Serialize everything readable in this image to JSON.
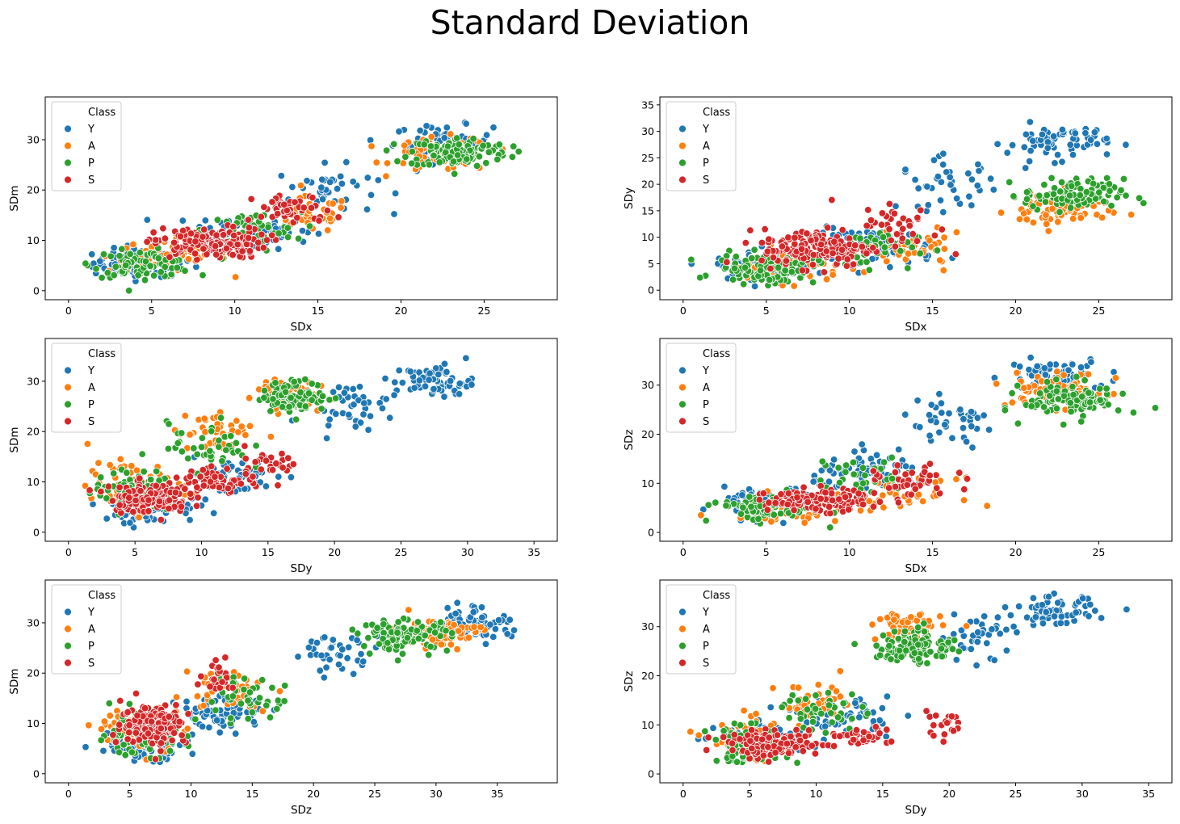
{
  "title": "Standard Deviation",
  "legend_title": "Class",
  "colors": {
    "Y": "#1f77b4",
    "A": "#ff7f0e",
    "P": "#2ca02c",
    "S": "#d62728"
  },
  "chart_data": [
    {
      "type": "scatter",
      "xlabel": "SDx",
      "ylabel": "SDm",
      "xlim": [
        -1.4,
        29.4
      ],
      "ylim": [
        -1.8,
        38.5
      ],
      "xticks": [
        0,
        5,
        10,
        15,
        20,
        25
      ],
      "yticks": [
        0,
        10,
        20,
        30
      ],
      "legend": "top-left",
      "grid": false,
      "series": [
        {
          "name": "Y",
          "clusters": [
            {
              "cx": 4.5,
              "cy": 5.5,
              "sx": 2.5,
              "sy": 2.3,
              "n": 110
            },
            {
              "cx": 11,
              "cy": 12,
              "sx": 3,
              "sy": 3,
              "n": 80
            },
            {
              "cx": 15.5,
              "cy": 20,
              "sx": 2.5,
              "sy": 4,
              "n": 40
            },
            {
              "cx": 22.5,
              "cy": 29.5,
              "sx": 2.5,
              "sy": 2.8,
              "n": 70
            }
          ]
        },
        {
          "name": "A",
          "clusters": [
            {
              "cx": 6,
              "cy": 7,
              "sx": 3,
              "sy": 2.8,
              "n": 60
            },
            {
              "cx": 14.5,
              "cy": 15,
              "sx": 2,
              "sy": 3,
              "n": 40
            },
            {
              "cx": 22.5,
              "cy": 27,
              "sx": 2.5,
              "sy": 2.8,
              "n": 70
            }
          ]
        },
        {
          "name": "P",
          "clusters": [
            {
              "cx": 4.5,
              "cy": 5.3,
              "sx": 2.5,
              "sy": 2.2,
              "n": 90
            },
            {
              "cx": 11,
              "cy": 12,
              "sx": 2.5,
              "sy": 3,
              "n": 40
            },
            {
              "cx": 23.5,
              "cy": 27.5,
              "sx": 2.5,
              "sy": 2.5,
              "n": 120
            }
          ]
        },
        {
          "name": "S",
          "clusters": [
            {
              "cx": 8.5,
              "cy": 9.5,
              "sx": 2.8,
              "sy": 2.5,
              "n": 150
            },
            {
              "cx": 13.5,
              "cy": 16,
              "sx": 2,
              "sy": 2.5,
              "n": 50
            }
          ]
        }
      ]
    },
    {
      "type": "scatter",
      "xlabel": "SDx",
      "ylabel": "SDy",
      "xlim": [
        -1.4,
        29.4
      ],
      "ylim": [
        -1.8,
        36.5
      ],
      "xticks": [
        0,
        5,
        10,
        15,
        20,
        25
      ],
      "yticks": [
        0,
        5,
        10,
        15,
        20,
        25,
        30,
        35
      ],
      "legend": "top-left",
      "grid": false,
      "series": [
        {
          "name": "Y",
          "clusters": [
            {
              "cx": 5,
              "cy": 4.5,
              "sx": 2.5,
              "sy": 2,
              "n": 90
            },
            {
              "cx": 11.5,
              "cy": 8,
              "sx": 3,
              "sy": 3,
              "n": 80
            },
            {
              "cx": 16,
              "cy": 20,
              "sx": 2.5,
              "sy": 4,
              "n": 40
            },
            {
              "cx": 22.5,
              "cy": 28,
              "sx": 2.5,
              "sy": 2.8,
              "n": 70
            }
          ]
        },
        {
          "name": "A",
          "clusters": [
            {
              "cx": 6,
              "cy": 4.5,
              "sx": 3,
              "sy": 2.5,
              "n": 60
            },
            {
              "cx": 14,
              "cy": 7.5,
              "sx": 2.5,
              "sy": 2.5,
              "n": 40
            },
            {
              "cx": 22.5,
              "cy": 15,
              "sx": 2.5,
              "sy": 3,
              "n": 70
            }
          ]
        },
        {
          "name": "P",
          "clusters": [
            {
              "cx": 5,
              "cy": 4,
              "sx": 2.5,
              "sy": 2.3,
              "n": 100
            },
            {
              "cx": 11,
              "cy": 8,
              "sx": 2.5,
              "sy": 3,
              "n": 40
            },
            {
              "cx": 23.5,
              "cy": 18,
              "sx": 2.5,
              "sy": 2.5,
              "n": 110
            }
          ]
        },
        {
          "name": "S",
          "clusters": [
            {
              "cx": 8,
              "cy": 8,
              "sx": 2.7,
              "sy": 3,
              "n": 150
            },
            {
              "cx": 13,
              "cy": 12,
              "sx": 2,
              "sy": 4,
              "n": 40
            }
          ]
        }
      ]
    },
    {
      "type": "scatter",
      "xlabel": "SDy",
      "ylabel": "SDm",
      "xlim": [
        -1.75,
        36.75
      ],
      "ylim": [
        -1.8,
        38.5
      ],
      "xticks": [
        0,
        5,
        10,
        15,
        20,
        25,
        30,
        35
      ],
      "yticks": [
        0,
        10,
        20,
        30
      ],
      "legend": "top-left",
      "grid": false,
      "series": [
        {
          "name": "Y",
          "clusters": [
            {
              "cx": 6,
              "cy": 5,
              "sx": 3,
              "sy": 2.5,
              "n": 90
            },
            {
              "cx": 12,
              "cy": 11,
              "sx": 3,
              "sy": 3,
              "n": 60
            },
            {
              "cx": 21,
              "cy": 25,
              "sx": 2.5,
              "sy": 3.5,
              "n": 40
            },
            {
              "cx": 27.5,
              "cy": 30,
              "sx": 2.5,
              "sy": 2.8,
              "n": 70
            }
          ]
        },
        {
          "name": "A",
          "clusters": [
            {
              "cx": 5,
              "cy": 9,
              "sx": 3,
              "sy": 4,
              "n": 70
            },
            {
              "cx": 11,
              "cy": 20,
              "sx": 2.5,
              "sy": 4,
              "n": 40
            },
            {
              "cx": 16,
              "cy": 28,
              "sx": 2,
              "sy": 2.5,
              "n": 60
            }
          ]
        },
        {
          "name": "P",
          "clusters": [
            {
              "cx": 5,
              "cy": 8,
              "sx": 2.5,
              "sy": 3.5,
              "n": 90
            },
            {
              "cx": 10.5,
              "cy": 17,
              "sx": 2.5,
              "sy": 4,
              "n": 40
            },
            {
              "cx": 17,
              "cy": 27,
              "sx": 2,
              "sy": 2.5,
              "n": 110
            }
          ]
        },
        {
          "name": "S",
          "clusters": [
            {
              "cx": 6,
              "cy": 7,
              "sx": 2.5,
              "sy": 2.5,
              "n": 130
            },
            {
              "cx": 11,
              "cy": 10,
              "sx": 2,
              "sy": 2.5,
              "n": 50
            },
            {
              "cx": 15,
              "cy": 14,
              "sx": 2,
              "sy": 2.5,
              "n": 30
            }
          ]
        }
      ]
    },
    {
      "type": "scatter",
      "xlabel": "SDx",
      "ylabel": "SDz",
      "xlim": [
        -1.4,
        29.4
      ],
      "ylim": [
        -1.8,
        39.5
      ],
      "xticks": [
        0,
        5,
        10,
        15,
        20,
        25
      ],
      "yticks": [
        0,
        10,
        20,
        30
      ],
      "legend": "top-left",
      "grid": false,
      "series": [
        {
          "name": "Y",
          "clusters": [
            {
              "cx": 5.5,
              "cy": 6,
              "sx": 2.5,
              "sy": 2.5,
              "n": 100
            },
            {
              "cx": 11.5,
              "cy": 12,
              "sx": 3,
              "sy": 3,
              "n": 80
            },
            {
              "cx": 16,
              "cy": 22,
              "sx": 2.5,
              "sy": 4,
              "n": 40
            },
            {
              "cx": 22.5,
              "cy": 32,
              "sx": 2.5,
              "sy": 2.8,
              "n": 70
            }
          ]
        },
        {
          "name": "A",
          "clusters": [
            {
              "cx": 6,
              "cy": 5,
              "sx": 3,
              "sy": 2.2,
              "n": 60
            },
            {
              "cx": 13.5,
              "cy": 8,
              "sx": 2.5,
              "sy": 2.5,
              "n": 40
            },
            {
              "cx": 22.5,
              "cy": 29,
              "sx": 2.5,
              "sy": 3,
              "n": 70
            }
          ]
        },
        {
          "name": "P",
          "clusters": [
            {
              "cx": 5,
              "cy": 5,
              "sx": 2.5,
              "sy": 2.2,
              "n": 100
            },
            {
              "cx": 11,
              "cy": 11,
              "sx": 2.5,
              "sy": 3,
              "n": 40
            },
            {
              "cx": 23.5,
              "cy": 27,
              "sx": 2.5,
              "sy": 3,
              "n": 110
            }
          ]
        },
        {
          "name": "S",
          "clusters": [
            {
              "cx": 8,
              "cy": 6.5,
              "sx": 2.5,
              "sy": 1.8,
              "n": 150
            },
            {
              "cx": 14,
              "cy": 10,
              "sx": 2,
              "sy": 3,
              "n": 40
            }
          ]
        }
      ]
    },
    {
      "type": "scatter",
      "xlabel": "SDz",
      "ylabel": "SDm",
      "xlim": [
        -1.9,
        39.9
      ],
      "ylim": [
        -1.8,
        38.5
      ],
      "xticks": [
        0,
        5,
        10,
        15,
        20,
        25,
        30,
        35
      ],
      "yticks": [
        0,
        10,
        20,
        30
      ],
      "legend": "top-left",
      "grid": false,
      "series": [
        {
          "name": "Y",
          "clusters": [
            {
              "cx": 6,
              "cy": 6.5,
              "sx": 3,
              "sy": 3,
              "n": 90
            },
            {
              "cx": 12.5,
              "cy": 12,
              "sx": 3,
              "sy": 3,
              "n": 70
            },
            {
              "cx": 22,
              "cy": 24,
              "sx": 3,
              "sy": 3,
              "n": 40
            },
            {
              "cx": 33,
              "cy": 30,
              "sx": 2.5,
              "sy": 2.8,
              "n": 80
            }
          ]
        },
        {
          "name": "A",
          "clusters": [
            {
              "cx": 6,
              "cy": 9,
              "sx": 3,
              "sy": 3.5,
              "n": 70
            },
            {
              "cx": 13,
              "cy": 17,
              "sx": 3,
              "sy": 3.5,
              "n": 40
            },
            {
              "cx": 30,
              "cy": 28,
              "sx": 3,
              "sy": 2.5,
              "n": 70
            }
          ]
        },
        {
          "name": "P",
          "clusters": [
            {
              "cx": 6,
              "cy": 8,
              "sx": 3,
              "sy": 3.5,
              "n": 100
            },
            {
              "cx": 14,
              "cy": 15,
              "sx": 3,
              "sy": 3.5,
              "n": 40
            },
            {
              "cx": 27.5,
              "cy": 27.5,
              "sx": 3,
              "sy": 2.5,
              "n": 110
            }
          ]
        },
        {
          "name": "S",
          "clusters": [
            {
              "cx": 7,
              "cy": 10,
              "sx": 2.2,
              "sy": 3.5,
              "n": 160
            },
            {
              "cx": 12.5,
              "cy": 19,
              "sx": 1.5,
              "sy": 2.5,
              "n": 25
            }
          ]
        }
      ]
    },
    {
      "type": "scatter",
      "xlabel": "SDy",
      "ylabel": "SDz",
      "xlim": [
        -1.75,
        36.75
      ],
      "ylim": [
        -1.8,
        39.5
      ],
      "xticks": [
        0,
        5,
        10,
        15,
        20,
        25,
        30,
        35
      ],
      "yticks": [
        0,
        10,
        20,
        30
      ],
      "legend": "top-left",
      "grid": false,
      "series": [
        {
          "name": "Y",
          "clusters": [
            {
              "cx": 6,
              "cy": 7,
              "sx": 3,
              "sy": 2.5,
              "n": 90
            },
            {
              "cx": 12,
              "cy": 12,
              "sx": 3,
              "sy": 3,
              "n": 60
            },
            {
              "cx": 22,
              "cy": 28,
              "sx": 2.5,
              "sy": 4,
              "n": 40
            },
            {
              "cx": 28,
              "cy": 33,
              "sx": 2.5,
              "sy": 2.5,
              "n": 70
            }
          ]
        },
        {
          "name": "A",
          "clusters": [
            {
              "cx": 5,
              "cy": 7,
              "sx": 2.5,
              "sy": 3.5,
              "n": 60
            },
            {
              "cx": 10,
              "cy": 14,
              "sx": 2.5,
              "sy": 3.5,
              "n": 40
            },
            {
              "cx": 17,
              "cy": 30,
              "sx": 2,
              "sy": 2.5,
              "n": 70
            }
          ]
        },
        {
          "name": "P",
          "clusters": [
            {
              "cx": 5,
              "cy": 6,
              "sx": 2.5,
              "sy": 3,
              "n": 90
            },
            {
              "cx": 10.5,
              "cy": 13,
              "sx": 2.5,
              "sy": 3.5,
              "n": 40
            },
            {
              "cx": 17.5,
              "cy": 26,
              "sx": 2.5,
              "sy": 3,
              "n": 110
            }
          ]
        },
        {
          "name": "S",
          "clusters": [
            {
              "cx": 7,
              "cy": 6,
              "sx": 2.8,
              "sy": 2,
              "n": 150
            },
            {
              "cx": 13,
              "cy": 7.5,
              "sx": 2,
              "sy": 1.5,
              "n": 40
            },
            {
              "cx": 19.5,
              "cy": 10,
              "sx": 1.8,
              "sy": 2,
              "n": 20
            }
          ]
        }
      ]
    }
  ]
}
